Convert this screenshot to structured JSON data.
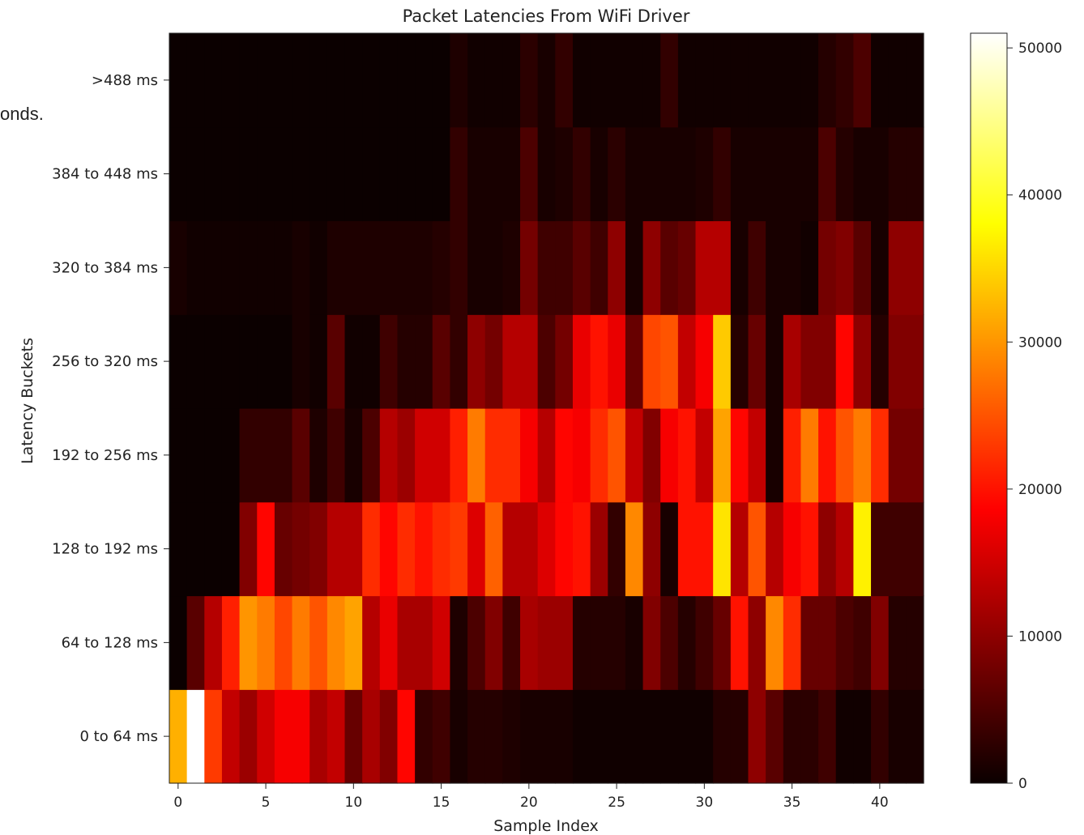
{
  "overlay_text": "onds.",
  "chart_data": {
    "type": "heatmap",
    "title": "Packet Latencies From WiFi Driver",
    "xlabel": "Sample Index",
    "ylabel": "Latency Buckets",
    "colormap": "hot",
    "x_ticks": [
      0,
      5,
      10,
      15,
      20,
      25,
      30,
      35,
      40
    ],
    "xlim": [
      -0.5,
      42.5
    ],
    "y_tick_labels": [
      "0 to 64 ms",
      "64 to 128 ms",
      "128 to 192 ms",
      "192 to 256 ms",
      "256 to 320 ms",
      "320 to 384 ms",
      "384 to 448 ms",
      ">488 ms"
    ],
    "colorbar": {
      "min": 0,
      "max": 51000,
      "ticks": [
        0,
        10000,
        20000,
        30000,
        40000,
        50000
      ]
    },
    "rows": [
      [
        32000,
        51000,
        23000,
        14000,
        11000,
        15000,
        18000,
        18000,
        12000,
        14000,
        7000,
        12000,
        9000,
        19000,
        3000,
        4000,
        1000,
        2000,
        2000,
        1500,
        1000,
        1000,
        1000,
        400,
        400,
        400,
        400,
        400,
        400,
        400,
        400,
        2000,
        2000,
        10000,
        6000,
        2500,
        2500,
        4000,
        500,
        500,
        3000,
        1000,
        1000
      ],
      [
        0,
        6000,
        13000,
        21000,
        30000,
        28000,
        24000,
        28000,
        25000,
        29000,
        31000,
        13000,
        17000,
        12000,
        12000,
        15000,
        1500,
        5000,
        9000,
        4000,
        12000,
        11000,
        11000,
        2000,
        2000,
        2000,
        1000,
        9000,
        5000,
        2000,
        4000,
        7000,
        20000,
        10000,
        29000,
        22000,
        7000,
        7000,
        5000,
        4000,
        9000,
        2000,
        2000
      ],
      [
        0,
        0,
        0,
        0,
        9000,
        19000,
        7000,
        8000,
        9000,
        13000,
        13000,
        22000,
        19000,
        22000,
        20000,
        22000,
        23000,
        16000,
        26000,
        13000,
        13000,
        16000,
        19000,
        20000,
        11000,
        3000,
        29000,
        10000,
        1000,
        20000,
        20000,
        36000,
        13000,
        25000,
        13000,
        18000,
        20000,
        10000,
        13000,
        37000,
        4000,
        4000,
        4000
      ],
      [
        0,
        0,
        0,
        0,
        3000,
        3000,
        3000,
        6000,
        1500,
        4000,
        1000,
        5000,
        13000,
        11000,
        15000,
        15000,
        21000,
        28000,
        22000,
        22000,
        18000,
        13000,
        19000,
        18000,
        22000,
        25000,
        14000,
        9000,
        18000,
        20000,
        14000,
        31000,
        19000,
        14000,
        1000,
        21000,
        28000,
        20000,
        25000,
        28000,
        22000,
        8000,
        8000
      ],
      [
        0,
        0,
        0,
        0,
        0,
        0,
        0,
        1000,
        500,
        6000,
        500,
        500,
        4000,
        2000,
        2000,
        6000,
        3000,
        10000,
        8000,
        13000,
        13000,
        5000,
        8000,
        17000,
        20000,
        17000,
        7000,
        24000,
        25000,
        14000,
        18000,
        34000,
        2000,
        7000,
        1000,
        12000,
        9000,
        9000,
        19000,
        10000,
        2000,
        9000,
        9000
      ],
      [
        1000,
        500,
        500,
        500,
        500,
        500,
        500,
        1000,
        500,
        1500,
        1500,
        1500,
        1500,
        1500,
        1500,
        2000,
        3000,
        1000,
        1000,
        1500,
        8000,
        4000,
        4000,
        6000,
        4000,
        10000,
        1000,
        10000,
        6000,
        7000,
        13000,
        13000,
        1000,
        4000,
        1000,
        1000,
        500,
        8000,
        9000,
        6000,
        1000,
        10000,
        10000
      ],
      [
        0,
        0,
        0,
        0,
        0,
        0,
        0,
        0,
        0,
        0,
        0,
        0,
        0,
        0,
        0,
        0,
        3000,
        1000,
        1000,
        1000,
        5000,
        1000,
        1500,
        3000,
        1000,
        2500,
        1000,
        1000,
        1000,
        1000,
        1500,
        3000,
        1000,
        1000,
        1000,
        1000,
        1000,
        5000,
        2000,
        1000,
        1000,
        2000,
        2000
      ],
      [
        0,
        0,
        0,
        0,
        0,
        0,
        0,
        0,
        0,
        0,
        0,
        0,
        0,
        0,
        0,
        0,
        1500,
        500,
        500,
        500,
        2500,
        1000,
        3000,
        500,
        500,
        500,
        500,
        500,
        3000,
        500,
        500,
        500,
        500,
        500,
        500,
        500,
        500,
        2000,
        3000,
        5000,
        500,
        500,
        500
      ]
    ]
  }
}
